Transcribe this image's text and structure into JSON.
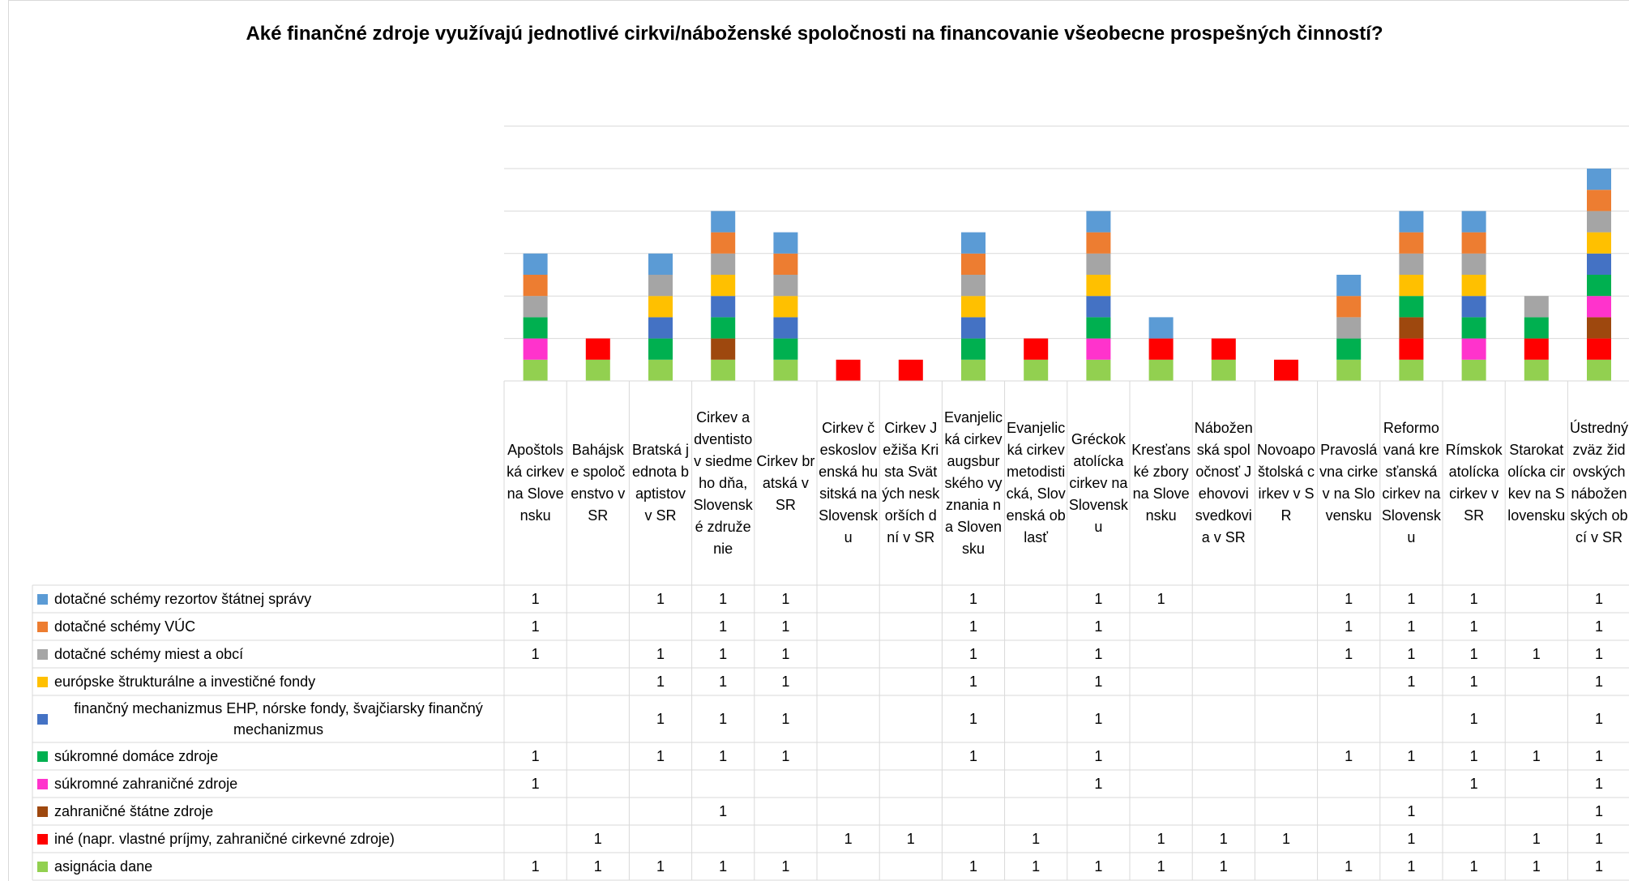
{
  "chart_data": {
    "type": "bar",
    "stacked": true,
    "title": "Aké finančné zdroje využívajú jednotlivé cirkvi/náboženské spoločnosti na financovanie všeobecne prospešných činností?",
    "legend_position": "left-table",
    "data_table": true,
    "ylim": [
      0,
      12
    ],
    "grid": true,
    "categories": [
      "Apoštolská cirkev na Slovensku",
      "Bahájske spoločenstvo v SR",
      "Bratská jednota baptistov v SR",
      "Cirkev adventistov siedmeho dňa, Slovenské združenie",
      "Cirkev bratská v SR",
      "Cirkev československá husitská na Slovensku",
      "Cirkev Ježiša Krista Svätých neskorších dní v SR",
      "Evanjelická cirkev augsburského vyznania na Slovensku",
      "Evanjelická cirkev metodistická, Slovenská oblasť",
      "Gréckokatolícka cirkev na Slovensku",
      "Kresťanské zbory na Slovensku",
      "Náboženská spoločnosť Jehovovi svedkovia v SR",
      "Novoapoštolská cirkev v SR",
      "Pravoslávna cirkev na Slovensku",
      "Reformovaná kresťanská cirkev na Slovensku",
      "Rímskokatolícka cirkev v SR",
      "Starokatolícka cirkev na Slovensku",
      "Ústredný zväz židovských náboženských obcí v SR"
    ],
    "series": [
      {
        "name": "asignácia dane",
        "color": "#92d050",
        "values": [
          1,
          1,
          1,
          1,
          1,
          0,
          0,
          1,
          1,
          1,
          1,
          1,
          0,
          1,
          1,
          1,
          1,
          1
        ]
      },
      {
        "name": "iné (napr. vlastné príjmy, zahraničné cirkevné zdroje)",
        "color": "#ff0000",
        "values": [
          0,
          1,
          0,
          0,
          0,
          1,
          1,
          0,
          1,
          0,
          1,
          1,
          1,
          0,
          1,
          0,
          1,
          1
        ]
      },
      {
        "name": "zahraničné štátne zdroje",
        "color": "#9e480e",
        "values": [
          0,
          0,
          0,
          1,
          0,
          0,
          0,
          0,
          0,
          0,
          0,
          0,
          0,
          0,
          1,
          0,
          0,
          1
        ]
      },
      {
        "name": "súkromné zahraničné zdroje",
        "color": "#ff33cc",
        "values": [
          1,
          0,
          0,
          0,
          0,
          0,
          0,
          0,
          0,
          1,
          0,
          0,
          0,
          0,
          0,
          1,
          0,
          1
        ]
      },
      {
        "name": "súkromné domáce zdroje",
        "color": "#00b050",
        "values": [
          1,
          0,
          1,
          1,
          1,
          0,
          0,
          1,
          0,
          1,
          0,
          0,
          0,
          1,
          1,
          1,
          1,
          1
        ]
      },
      {
        "name": "finančný mechanizmus EHP, nórske fondy, švajčiarsky finančný mechanizmus",
        "color": "#4472c4",
        "values": [
          0,
          0,
          1,
          1,
          1,
          0,
          0,
          1,
          0,
          1,
          0,
          0,
          0,
          0,
          0,
          1,
          0,
          1
        ]
      },
      {
        "name": "európske štrukturálne a investičné fondy",
        "color": "#ffc000",
        "values": [
          0,
          0,
          1,
          1,
          1,
          0,
          0,
          1,
          0,
          1,
          0,
          0,
          0,
          0,
          1,
          1,
          0,
          1
        ]
      },
      {
        "name": "dotačné schémy miest a obcí",
        "color": "#a5a5a5",
        "values": [
          1,
          0,
          1,
          1,
          1,
          0,
          0,
          1,
          0,
          1,
          0,
          0,
          0,
          1,
          1,
          1,
          1,
          1
        ]
      },
      {
        "name": "dotačné schémy VÚC",
        "color": "#ed7d31",
        "values": [
          1,
          0,
          0,
          1,
          1,
          0,
          0,
          1,
          0,
          1,
          0,
          0,
          0,
          1,
          1,
          1,
          0,
          1
        ]
      },
      {
        "name": "dotačné schémy rezortov štátnej správy",
        "color": "#5b9bd5",
        "values": [
          1,
          0,
          1,
          1,
          1,
          0,
          0,
          1,
          0,
          1,
          1,
          0,
          0,
          1,
          1,
          1,
          0,
          1
        ]
      }
    ],
    "table_row_order": [
      9,
      8,
      7,
      6,
      5,
      4,
      3,
      2,
      1,
      0
    ]
  }
}
